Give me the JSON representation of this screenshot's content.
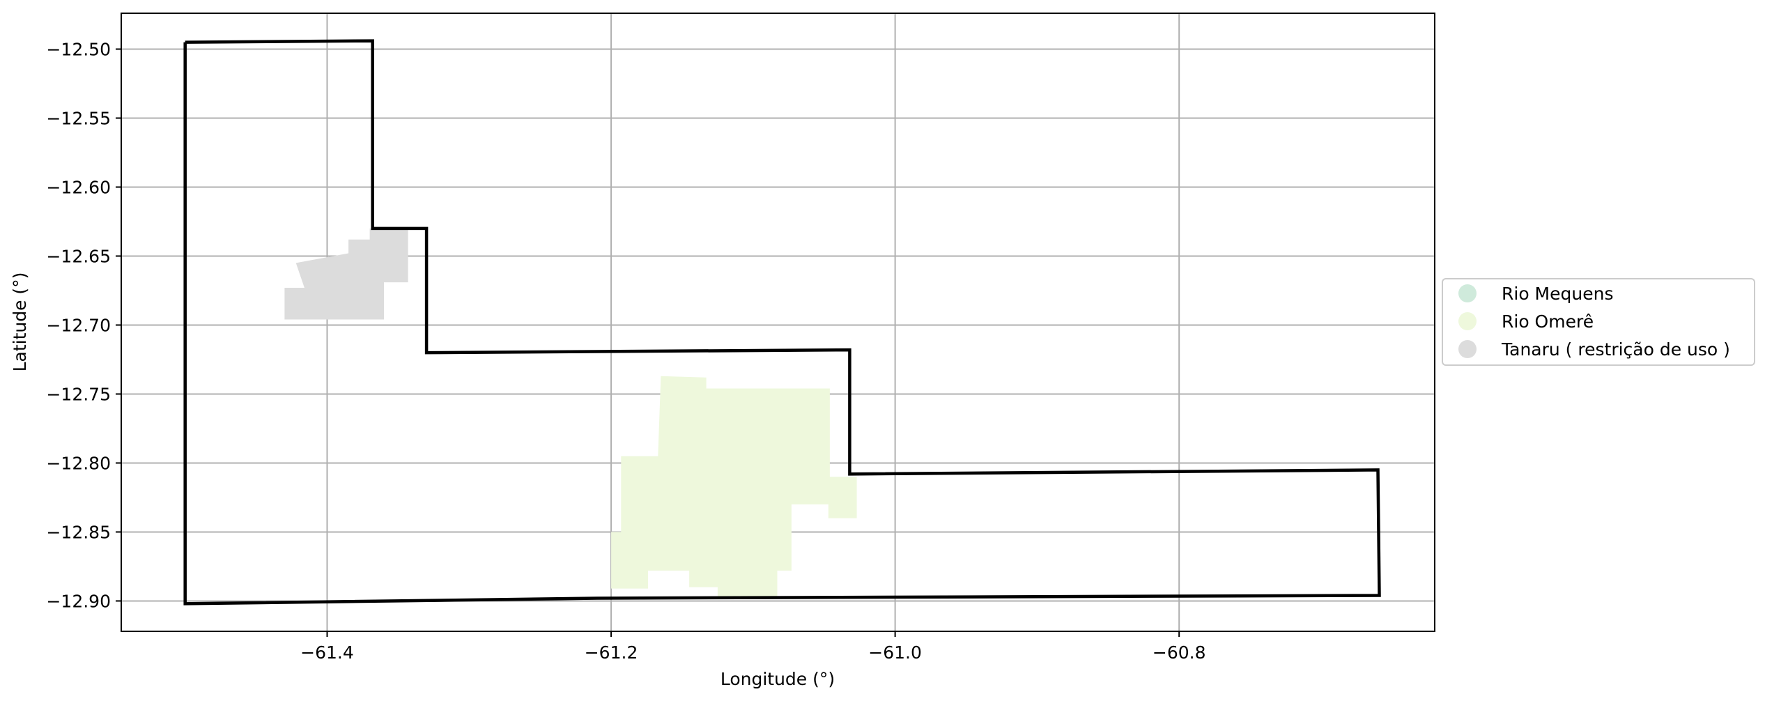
{
  "chart_data": {
    "type": "map",
    "xlabel": "Longitude (°)",
    "ylabel": "Latitude (°)",
    "xlim": [
      -61.545,
      -60.62
    ],
    "ylim": [
      -12.922,
      -12.474
    ],
    "xticks": [
      -61.4,
      -61.2,
      -61.0,
      -60.8
    ],
    "xtick_labels": [
      "−61.4",
      "−61.2",
      "−61.0",
      "−60.8"
    ],
    "yticks": [
      -12.5,
      -12.55,
      -12.6,
      -12.65,
      -12.7,
      -12.75,
      -12.8,
      -12.85,
      -12.9
    ],
    "ytick_labels": [
      "−12.50",
      "−12.55",
      "−12.60",
      "−12.65",
      "−12.70",
      "−12.75",
      "−12.80",
      "−12.85",
      "−12.90"
    ],
    "grid": true,
    "legend_position": "right-center",
    "colors": {
      "boundary": "#000000",
      "grid": "#b0b0b0",
      "Rio Mequens": "#cfeadb",
      "Rio Omerê": "#eef8dc",
      "Tanaru": "#dcdcdc"
    },
    "legend": [
      {
        "label": "Rio Mequens",
        "color": "#cfeadb"
      },
      {
        "label": "Rio Omerê",
        "color": "#eef8dc"
      },
      {
        "label": "Tanaru ( restrição de uso )",
        "color": "#dcdcdc"
      }
    ],
    "layers": [
      {
        "name": "Tanaru ( restrição de uso )",
        "color": "#dcdcdc",
        "polygon": [
          [
            -61.37,
            -12.63
          ],
          [
            -61.343,
            -12.629
          ],
          [
            -61.343,
            -12.669
          ],
          [
            -61.36,
            -12.669
          ],
          [
            -61.36,
            -12.696
          ],
          [
            -61.43,
            -12.696
          ],
          [
            -61.43,
            -12.673
          ],
          [
            -61.416,
            -12.673
          ],
          [
            -61.422,
            -12.655
          ],
          [
            -61.385,
            -12.648
          ],
          [
            -61.385,
            -12.638
          ],
          [
            -61.37,
            -12.638
          ]
        ]
      },
      {
        "name": "Rio Omerê",
        "color": "#eef8dc",
        "polygon": [
          [
            -61.165,
            -12.737
          ],
          [
            -61.133,
            -12.738
          ],
          [
            -61.133,
            -12.746
          ],
          [
            -61.046,
            -12.746
          ],
          [
            -61.046,
            -12.81
          ],
          [
            -61.027,
            -12.81
          ],
          [
            -61.027,
            -12.84
          ],
          [
            -61.047,
            -12.84
          ],
          [
            -61.047,
            -12.83
          ],
          [
            -61.073,
            -12.83
          ],
          [
            -61.073,
            -12.878
          ],
          [
            -61.083,
            -12.878
          ],
          [
            -61.083,
            -12.898
          ],
          [
            -61.125,
            -12.898
          ],
          [
            -61.125,
            -12.89
          ],
          [
            -61.145,
            -12.89
          ],
          [
            -61.145,
            -12.878
          ],
          [
            -61.174,
            -12.878
          ],
          [
            -61.174,
            -12.891
          ],
          [
            -61.2,
            -12.891
          ],
          [
            -61.2,
            -12.85
          ],
          [
            -61.193,
            -12.85
          ],
          [
            -61.193,
            -12.795
          ],
          [
            -61.167,
            -12.795
          ]
        ]
      }
    ],
    "boundary": [
      [
        -61.5,
        -12.495
      ],
      [
        -61.368,
        -12.494
      ],
      [
        -61.368,
        -12.63
      ],
      [
        -61.33,
        -12.63
      ],
      [
        -61.33,
        -12.72
      ],
      [
        -61.032,
        -12.718
      ],
      [
        -61.032,
        -12.808
      ],
      [
        -60.66,
        -12.805
      ],
      [
        -60.659,
        -12.896
      ],
      [
        -61.21,
        -12.898
      ],
      [
        -61.5,
        -12.902
      ],
      [
        -61.5,
        -12.495
      ]
    ]
  }
}
